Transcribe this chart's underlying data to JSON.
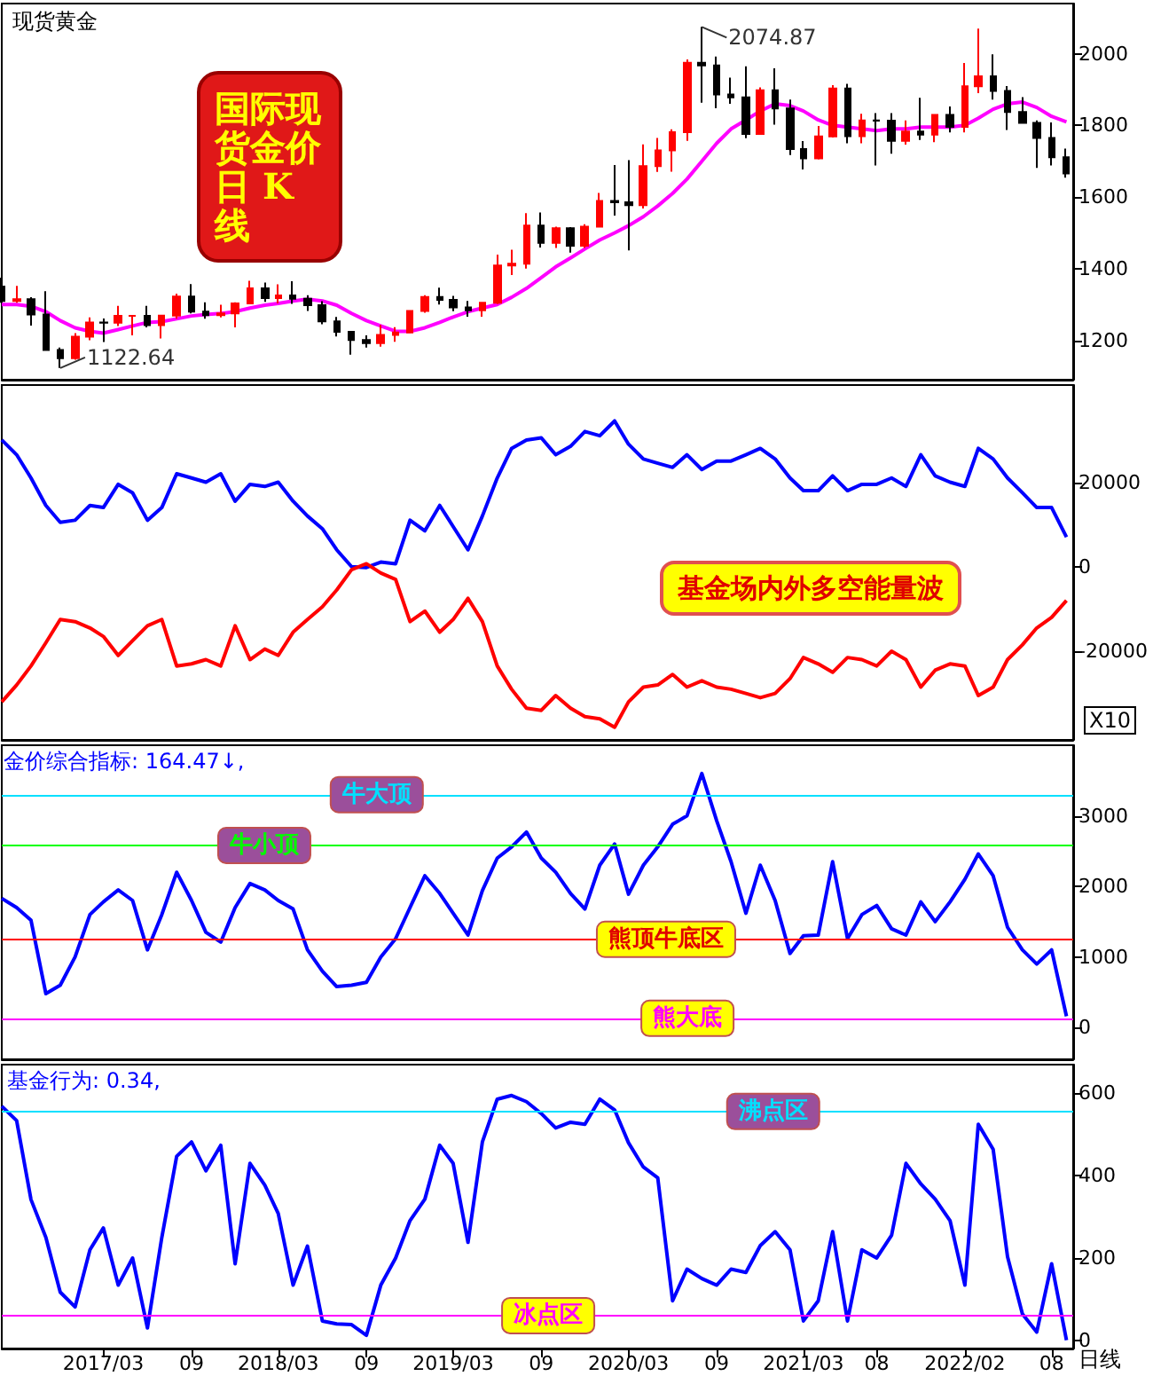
{
  "chart_data": [
    {
      "type": "candlestick",
      "title": "现货黄金",
      "tick_labels": "y",
      "x": [
        "2016-08",
        "2016-09",
        "2016-10",
        "2016-11",
        "2016-12",
        "2017-01",
        "2017-02",
        "2017-03",
        "2017-04",
        "2017-05",
        "2017-06",
        "2017-07",
        "2017-08",
        "2017-09",
        "2017-10",
        "2017-11",
        "2017-12",
        "2018-01",
        "2018-02",
        "2018-03",
        "2018-04",
        "2018-05",
        "2018-06",
        "2018-07",
        "2018-08",
        "2018-09",
        "2018-10",
        "2018-11",
        "2018-12",
        "2019-01",
        "2019-02",
        "2019-03",
        "2019-04",
        "2019-05",
        "2019-06",
        "2019-07",
        "2019-08",
        "2019-09",
        "2019-10",
        "2019-11",
        "2019-12",
        "2020-01",
        "2020-02",
        "2020-03",
        "2020-04",
        "2020-05",
        "2020-06",
        "2020-07",
        "2020-08",
        "2020-09",
        "2020-10",
        "2020-11",
        "2020-12",
        "2021-01",
        "2021-02",
        "2021-03",
        "2021-04",
        "2021-05",
        "2021-06",
        "2021-07",
        "2021-08",
        "2021-09",
        "2021-10",
        "2021-11",
        "2021-12",
        "2022-01",
        "2022-02",
        "2022-03",
        "2022-04",
        "2022-05",
        "2022-06",
        "2022-07",
        "2022-08",
        "2022-09"
      ],
      "ohlc": [
        [
          1350,
          1375,
          1305,
          1310
        ],
        [
          1310,
          1352,
          1305,
          1315
        ],
        [
          1315,
          1320,
          1241,
          1272
        ],
        [
          1272,
          1337,
          1171,
          1173
        ],
        [
          1173,
          1180,
          1122.64,
          1150
        ],
        [
          1150,
          1220,
          1146,
          1210
        ],
        [
          1210,
          1264,
          1200,
          1250
        ],
        [
          1250,
          1261,
          1195,
          1249
        ],
        [
          1249,
          1296,
          1240,
          1268
        ],
        [
          1268,
          1270,
          1214,
          1268
        ],
        [
          1268,
          1296,
          1236,
          1242
        ],
        [
          1242,
          1270,
          1205,
          1269
        ],
        [
          1269,
          1330,
          1260,
          1322
        ],
        [
          1322,
          1357,
          1275,
          1280
        ],
        [
          1280,
          1306,
          1260,
          1270
        ],
        [
          1270,
          1299,
          1264,
          1275
        ],
        [
          1275,
          1306,
          1236,
          1303
        ],
        [
          1303,
          1366,
          1302,
          1345
        ],
        [
          1345,
          1361,
          1307,
          1318
        ],
        [
          1318,
          1356,
          1303,
          1325
        ],
        [
          1325,
          1365,
          1302,
          1316
        ],
        [
          1316,
          1326,
          1282,
          1298
        ],
        [
          1298,
          1309,
          1245,
          1253
        ],
        [
          1253,
          1265,
          1211,
          1224
        ],
        [
          1224,
          1225,
          1160,
          1201
        ],
        [
          1201,
          1214,
          1180,
          1192
        ],
        [
          1192,
          1243,
          1182,
          1215
        ],
        [
          1215,
          1237,
          1196,
          1222
        ],
        [
          1222,
          1284,
          1221,
          1282
        ],
        [
          1282,
          1326,
          1277,
          1321
        ],
        [
          1321,
          1347,
          1300,
          1313
        ],
        [
          1313,
          1324,
          1281,
          1292
        ],
        [
          1292,
          1310,
          1266,
          1284
        ],
        [
          1284,
          1306,
          1266,
          1305
        ],
        [
          1305,
          1439,
          1301,
          1409
        ],
        [
          1409,
          1453,
          1382,
          1414
        ],
        [
          1414,
          1555,
          1400,
          1520
        ],
        [
          1520,
          1557,
          1459,
          1472
        ],
        [
          1472,
          1517,
          1458,
          1513
        ],
        [
          1513,
          1516,
          1445,
          1464
        ],
        [
          1464,
          1524,
          1458,
          1517
        ],
        [
          1517,
          1611,
          1517,
          1589
        ],
        [
          1589,
          1689,
          1548,
          1585
        ],
        [
          1585,
          1703,
          1451,
          1577
        ],
        [
          1577,
          1747,
          1568,
          1686
        ],
        [
          1686,
          1765,
          1670,
          1730
        ],
        [
          1730,
          1789,
          1671,
          1781
        ],
        [
          1781,
          1984,
          1757,
          1975
        ],
        [
          1975,
          2074.87,
          1863,
          1967
        ],
        [
          1967,
          1992,
          1848,
          1886
        ],
        [
          1886,
          1933,
          1860,
          1878
        ],
        [
          1878,
          1965,
          1764,
          1776
        ],
        [
          1776,
          1906,
          1776,
          1898
        ],
        [
          1898,
          1959,
          1802,
          1847
        ],
        [
          1847,
          1872,
          1717,
          1734
        ],
        [
          1734,
          1756,
          1677,
          1708
        ],
        [
          1708,
          1798,
          1705,
          1769
        ],
        [
          1769,
          1912,
          1766,
          1903
        ],
        [
          1903,
          1916,
          1750,
          1770
        ],
        [
          1770,
          1832,
          1750,
          1814
        ],
        [
          1814,
          1834,
          1688,
          1813
        ],
        [
          1813,
          1834,
          1721,
          1757
        ],
        [
          1757,
          1814,
          1746,
          1783
        ],
        [
          1783,
          1877,
          1759,
          1774
        ],
        [
          1774,
          1831,
          1753,
          1829
        ],
        [
          1829,
          1853,
          1780,
          1796
        ],
        [
          1796,
          1974,
          1780,
          1909
        ],
        [
          1909,
          2070,
          1890,
          1937
        ],
        [
          1937,
          1998,
          1872,
          1896
        ],
        [
          1896,
          1910,
          1787,
          1837
        ],
        [
          1837,
          1879,
          1805,
          1807
        ],
        [
          1807,
          1814,
          1681,
          1765
        ],
        [
          1765,
          1808,
          1688,
          1711
        ],
        [
          1711,
          1735,
          1654,
          1666
        ]
      ],
      "series": [
        {
          "type": "line",
          "color": "#ff00ff",
          "values": [
            1300,
            1300,
            1295,
            1280,
            1255,
            1235,
            1225,
            1220,
            1230,
            1240,
            1250,
            1252,
            1260,
            1268,
            1272,
            1275,
            1280,
            1290,
            1298,
            1303,
            1310,
            1315,
            1310,
            1298,
            1275,
            1255,
            1240,
            1225,
            1225,
            1235,
            1250,
            1265,
            1280,
            1290,
            1300,
            1320,
            1345,
            1375,
            1405,
            1430,
            1455,
            1480,
            1500,
            1520,
            1545,
            1575,
            1610,
            1650,
            1700,
            1750,
            1790,
            1815,
            1840,
            1860,
            1855,
            1840,
            1815,
            1800,
            1795,
            1790,
            1785,
            1790,
            1790,
            1795,
            1795,
            1795,
            1800,
            1820,
            1845,
            1860,
            1865,
            1850,
            1825,
            1810
          ]
        }
      ],
      "xlim": [
        "2016-08",
        "2022-09-15"
      ],
      "ylim": [
        1090,
        2140
      ],
      "yticks": [
        1200,
        1400,
        1600,
        1800,
        2000
      ],
      "annotations": [
        "国际现货金价日 K线",
        {
          "text": "2074.87",
          "x": "2020-08",
          "y": 2074.87
        },
        {
          "text": "1122.64",
          "x": "2016-12",
          "y": 1122.64
        }
      ]
    },
    {
      "type": "line",
      "tick_labels": "y",
      "x": [
        "2016-08",
        "2016-09",
        "2016-10",
        "2016-11",
        "2016-12",
        "2017-01",
        "2017-02",
        "2017-03",
        "2017-04",
        "2017-05",
        "2017-06",
        "2017-07",
        "2017-08",
        "2017-09",
        "2017-10",
        "2017-11",
        "2017-12",
        "2018-01",
        "2018-02",
        "2018-03",
        "2018-04",
        "2018-05",
        "2018-06",
        "2018-07",
        "2018-08",
        "2018-09",
        "2018-10",
        "2018-11",
        "2018-12",
        "2019-01",
        "2019-02",
        "2019-03",
        "2019-04",
        "2019-05",
        "2019-06",
        "2019-07",
        "2019-08",
        "2019-09",
        "2019-10",
        "2019-11",
        "2019-12",
        "2020-01",
        "2020-02",
        "2020-03",
        "2020-04",
        "2020-05",
        "2020-06",
        "2020-07",
        "2020-08",
        "2020-09",
        "2020-10",
        "2020-11",
        "2020-12",
        "2021-01",
        "2021-02",
        "2021-03",
        "2021-04",
        "2021-05",
        "2021-06",
        "2021-07",
        "2021-08",
        "2021-09",
        "2021-10",
        "2021-11",
        "2021-12",
        "2022-01",
        "2022-02",
        "2022-03",
        "2022-04",
        "2022-05",
        "2022-06",
        "2022-07",
        "2022-08",
        "2022-09"
      ],
      "series": [
        {
          "color": "#0000ff",
          "values": [
            30000,
            26500,
            21000,
            14500,
            10500,
            11000,
            14500,
            14000,
            19500,
            17500,
            11000,
            14000,
            22000,
            21000,
            20000,
            22000,
            15500,
            19500,
            19000,
            20000,
            15500,
            12000,
            9000,
            4000,
            0,
            -200,
            1100,
            700,
            11000,
            8500,
            14500,
            9500,
            4000,
            12000,
            21000,
            28000,
            30000,
            30500,
            26500,
            28500,
            32000,
            31000,
            34500,
            29000,
            25500,
            24500,
            23500,
            26500,
            23000,
            25000,
            25000,
            26500,
            28000,
            25500,
            21000,
            18000,
            18000,
            21500,
            18000,
            19500,
            19500,
            21000,
            19000,
            26500,
            21500,
            20000,
            19000,
            28000,
            25500,
            21000,
            17500,
            14000,
            14000,
            7000
          ]
        },
        {
          "color": "#ff0000",
          "values": [
            -32000,
            -28000,
            -23500,
            -18000,
            -12500,
            -13000,
            -14500,
            -16500,
            -21000,
            -17500,
            -14000,
            -12500,
            -23500,
            -23000,
            -22000,
            -23500,
            -14000,
            -22000,
            -19500,
            -21000,
            -15500,
            -12500,
            -9500,
            -5500,
            -700,
            700,
            -1500,
            -3000,
            -13000,
            -10500,
            -15500,
            -12500,
            -7500,
            -13000,
            -23500,
            -29000,
            -33500,
            -34000,
            -30500,
            -33500,
            -35500,
            -36000,
            -38000,
            -32000,
            -28500,
            -28000,
            -25500,
            -28500,
            -27000,
            -28500,
            -29000,
            -30000,
            -31000,
            -30000,
            -26500,
            -21500,
            -23000,
            -25000,
            -21500,
            -22000,
            -23500,
            -20000,
            -22000,
            -28500,
            -24500,
            -23000,
            -23500,
            -30500,
            -28500,
            -22000,
            -18500,
            -14500,
            -12000,
            -8000
          ]
        }
      ],
      "xlim": [
        "2016-08",
        "2022-09-15"
      ],
      "ylim": [
        -41000,
        43000
      ],
      "yticks": [
        -20000,
        0,
        20000
      ],
      "annotations": [
        "基金场内外多空能量波",
        "X10"
      ]
    },
    {
      "type": "line",
      "tick_labels": "y",
      "x": [
        "2016-08",
        "2016-09",
        "2016-10",
        "2016-11",
        "2016-12",
        "2017-01",
        "2017-02",
        "2017-03",
        "2017-04",
        "2017-05",
        "2017-06",
        "2017-07",
        "2017-08",
        "2017-09",
        "2017-10",
        "2017-11",
        "2017-12",
        "2018-01",
        "2018-02",
        "2018-03",
        "2018-04",
        "2018-05",
        "2018-06",
        "2018-07",
        "2018-08",
        "2018-09",
        "2018-10",
        "2018-11",
        "2018-12",
        "2019-01",
        "2019-02",
        "2019-03",
        "2019-04",
        "2019-05",
        "2019-06",
        "2019-07",
        "2019-08",
        "2019-09",
        "2019-10",
        "2019-11",
        "2019-12",
        "2020-01",
        "2020-02",
        "2020-03",
        "2020-04",
        "2020-05",
        "2020-06",
        "2020-07",
        "2020-08",
        "2020-09",
        "2020-10",
        "2020-11",
        "2020-12",
        "2021-01",
        "2021-02",
        "2021-03",
        "2021-04",
        "2021-05",
        "2021-06",
        "2021-07",
        "2021-08",
        "2021-09",
        "2021-10",
        "2021-11",
        "2021-12",
        "2022-01",
        "2022-02",
        "2022-03",
        "2022-04",
        "2022-05",
        "2022-06",
        "2022-07",
        "2022-08",
        "2022-09"
      ],
      "series": [
        {
          "color": "#0000ff",
          "values": [
            1830,
            1700,
            1520,
            480,
            600,
            1000,
            1600,
            1780,
            1950,
            1800,
            1100,
            1600,
            2200,
            1800,
            1350,
            1210,
            1700,
            2040,
            1950,
            1800,
            1680,
            1100,
            800,
            580,
            600,
            640,
            1000,
            1260,
            1700,
            2150,
            1900,
            1620,
            1310,
            1940,
            2400,
            2560,
            2770,
            2400,
            2200,
            1900,
            1680,
            2300,
            2600,
            1890,
            2300,
            2560,
            2880,
            3000,
            3600,
            2930,
            2350,
            1620,
            2300,
            1800,
            1050,
            1300,
            1310,
            2350,
            1260,
            1600,
            1730,
            1400,
            1310,
            1780,
            1500,
            1780,
            2100,
            2460,
            2150,
            1420,
            1100,
            900,
            1100,
            160
          ]
        }
      ],
      "xlim": [
        "2016-08",
        "2022-09-15"
      ],
      "ylim": [
        -450,
        4000
      ],
      "yticks": [
        0,
        1000,
        2000,
        3000
      ],
      "ref_lines": [
        {
          "axis": "y",
          "value": 3300,
          "label": "牛大顶",
          "color": "#00e0ff"
        },
        {
          "axis": "y",
          "value": 2580,
          "label": "牛小顶",
          "color": "#00ff00"
        },
        {
          "axis": "y",
          "value": 1250,
          "label": "熊顶牛底区",
          "color": "#ff0000"
        },
        {
          "axis": "y",
          "value": 130,
          "label": "熊大底",
          "color": "#ff00ff"
        }
      ],
      "annotations": [
        "金价综合指标: 164.47↓,"
      ]
    },
    {
      "type": "line",
      "x": [
        "2016-08",
        "2016-09",
        "2016-10",
        "2016-11",
        "2016-12",
        "2017-01",
        "2017-02",
        "2017-03",
        "2017-04",
        "2017-05",
        "2017-06",
        "2017-07",
        "2017-08",
        "2017-09",
        "2017-10",
        "2017-11",
        "2017-12",
        "2018-01",
        "2018-02",
        "2018-03",
        "2018-04",
        "2018-05",
        "2018-06",
        "2018-07",
        "2018-08",
        "2018-09",
        "2018-10",
        "2018-11",
        "2018-12",
        "2019-01",
        "2019-02",
        "2019-03",
        "2019-04",
        "2019-05",
        "2019-06",
        "2019-07",
        "2019-08",
        "2019-09",
        "2019-10",
        "2019-11",
        "2019-12",
        "2020-01",
        "2020-02",
        "2020-03",
        "2020-04",
        "2020-05",
        "2020-06",
        "2020-07",
        "2020-08",
        "2020-09",
        "2020-10",
        "2020-11",
        "2020-12",
        "2021-01",
        "2021-02",
        "2021-03",
        "2021-04",
        "2021-05",
        "2021-06",
        "2021-07",
        "2021-08",
        "2021-09",
        "2021-10",
        "2021-11",
        "2021-12",
        "2022-01",
        "2022-02",
        "2022-03",
        "2022-04",
        "2022-05",
        "2022-06",
        "2022-07",
        "2022-08",
        "2022-09"
      ],
      "series": [
        {
          "color": "#0000ff",
          "values": [
            569,
            534,
            342,
            250,
            117,
            81,
            220,
            273,
            134,
            200,
            30,
            250,
            447,
            482,
            412,
            474,
            186,
            430,
            377,
            308,
            134,
            229,
            47,
            40,
            38,
            12,
            134,
            200,
            291,
            343,
            474,
            430,
            238,
            482,
            586,
            595,
            580,
            551,
            516,
            530,
            525,
            586,
            560,
            480,
            421,
            395,
            96,
            173,
            150,
            134,
            173,
            165,
            230,
            264,
            220,
            47,
            96,
            264,
            47,
            220,
            200,
            255,
            430,
            380,
            343,
            291,
            134,
            525,
            464,
            203,
            64,
            20,
            186,
            0
          ]
        }
      ],
      "xlim": [
        "2016-08",
        "2022-09-15"
      ],
      "ylim": [
        -20,
        670
      ],
      "yticks": [
        0,
        200,
        400,
        600
      ],
      "xticks": [
        {
          "value": "2017-03",
          "label": "2017/03"
        },
        {
          "value": "2017-09",
          "label": "09"
        },
        {
          "value": "2018-03",
          "label": "2018/03"
        },
        {
          "value": "2018-09",
          "label": "09"
        },
        {
          "value": "2019-03",
          "label": "2019/03"
        },
        {
          "value": "2019-09",
          "label": "09"
        },
        {
          "value": "2020-03",
          "label": "2020/03"
        },
        {
          "value": "2020-09",
          "label": "09"
        },
        {
          "value": "2021-03",
          "label": "2021/03"
        },
        {
          "value": "2021-08",
          "label": "08"
        },
        {
          "value": "2022-02",
          "label": "2022/02"
        },
        {
          "value": "2022-08",
          "label": "08"
        }
      ],
      "ref_lines": [
        {
          "axis": "y",
          "value": 556,
          "label": "沸点区",
          "color": "#00e0ff"
        },
        {
          "axis": "y",
          "value": 60,
          "label": "冰点区",
          "color": "#ff00ff"
        }
      ],
      "annotations": [
        "基金行为: 0.34,",
        "日线"
      ]
    }
  ]
}
